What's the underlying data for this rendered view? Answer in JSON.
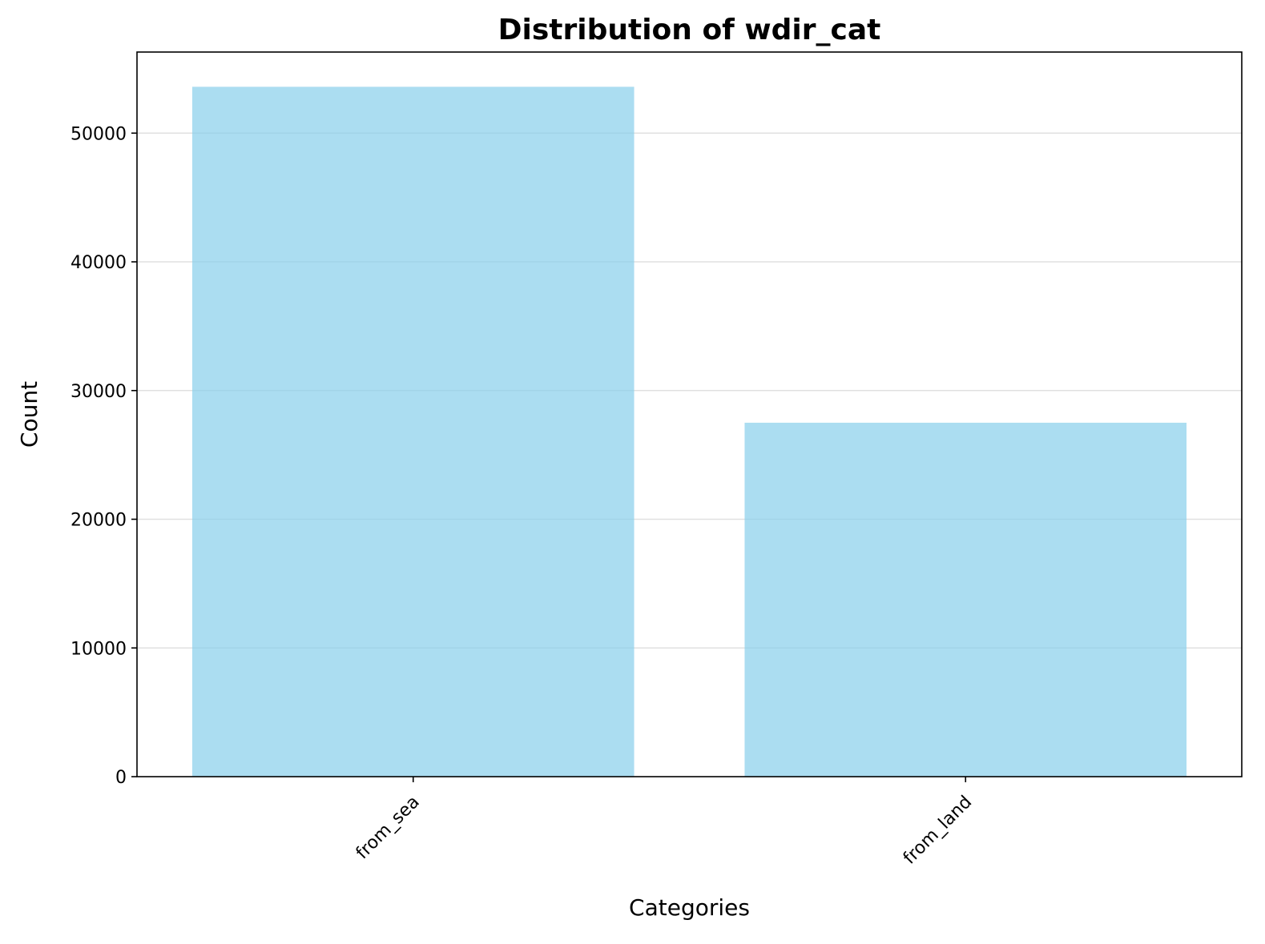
{
  "chart_data": {
    "type": "bar",
    "title": "Distribution of wdir_cat",
    "xlabel": "Categories",
    "ylabel": "Count",
    "categories": [
      "from_sea",
      "from_land"
    ],
    "values": [
      53600,
      27500
    ],
    "ylim": [
      0,
      56300
    ],
    "yticks": [
      0,
      10000,
      20000,
      30000,
      40000,
      50000
    ],
    "grid": "y",
    "bar_color": "#87CEEB",
    "bar_opacity": 0.7,
    "x_tick_rotation": 45
  }
}
